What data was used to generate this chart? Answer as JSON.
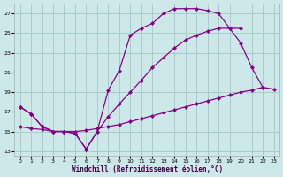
{
  "xlabel": "Windchill (Refroidissement éolien,°C)",
  "background_color": "#cce8e8",
  "grid_color": "#aacccc",
  "line_color": "#880088",
  "xlim": [
    -0.5,
    23.5
  ],
  "ylim": [
    12.5,
    28.0
  ],
  "xticks": [
    0,
    1,
    2,
    3,
    4,
    5,
    6,
    7,
    8,
    9,
    10,
    11,
    12,
    13,
    14,
    15,
    16,
    17,
    18,
    19,
    20,
    21,
    22,
    23
  ],
  "yticks": [
    13,
    15,
    17,
    19,
    21,
    23,
    25,
    27
  ],
  "curve1_x": [
    0,
    1,
    2,
    3,
    4,
    5,
    6,
    7,
    8,
    9,
    10,
    11,
    12,
    13,
    14,
    15,
    16,
    17,
    18,
    19,
    20,
    21,
    22
  ],
  "curve1_y": [
    17.5,
    16.8,
    15.5,
    15.0,
    15.0,
    14.8,
    13.2,
    15.0,
    19.2,
    21.2,
    24.8,
    25.5,
    26.0,
    27.0,
    27.5,
    27.5,
    27.5,
    27.3,
    27.0,
    25.5,
    24.0,
    21.5,
    19.5
  ],
  "curve2_x": [
    0,
    1,
    2,
    3,
    4,
    5,
    6,
    7,
    8,
    9,
    10,
    11,
    12,
    13,
    14,
    15,
    16,
    17,
    18,
    19,
    20
  ],
  "curve2_y": [
    17.5,
    16.8,
    15.5,
    15.0,
    15.0,
    14.8,
    13.2,
    15.0,
    16.5,
    17.8,
    19.0,
    20.2,
    21.5,
    22.5,
    23.5,
    24.3,
    24.8,
    25.2,
    25.5,
    25.5,
    25.5
  ],
  "curve3_x": [
    0,
    1,
    2,
    3,
    4,
    5,
    6,
    7,
    8,
    9,
    10,
    11,
    12,
    13,
    14,
    15,
    16,
    17,
    18,
    19,
    20,
    21,
    22,
    23
  ],
  "curve3_y": [
    15.5,
    15.3,
    15.2,
    15.0,
    15.0,
    15.0,
    15.1,
    15.3,
    15.5,
    15.7,
    16.0,
    16.3,
    16.6,
    16.9,
    17.2,
    17.5,
    17.8,
    18.1,
    18.4,
    18.7,
    19.0,
    19.2,
    19.5,
    19.3
  ],
  "marker_size": 2.5,
  "line_width": 0.9
}
